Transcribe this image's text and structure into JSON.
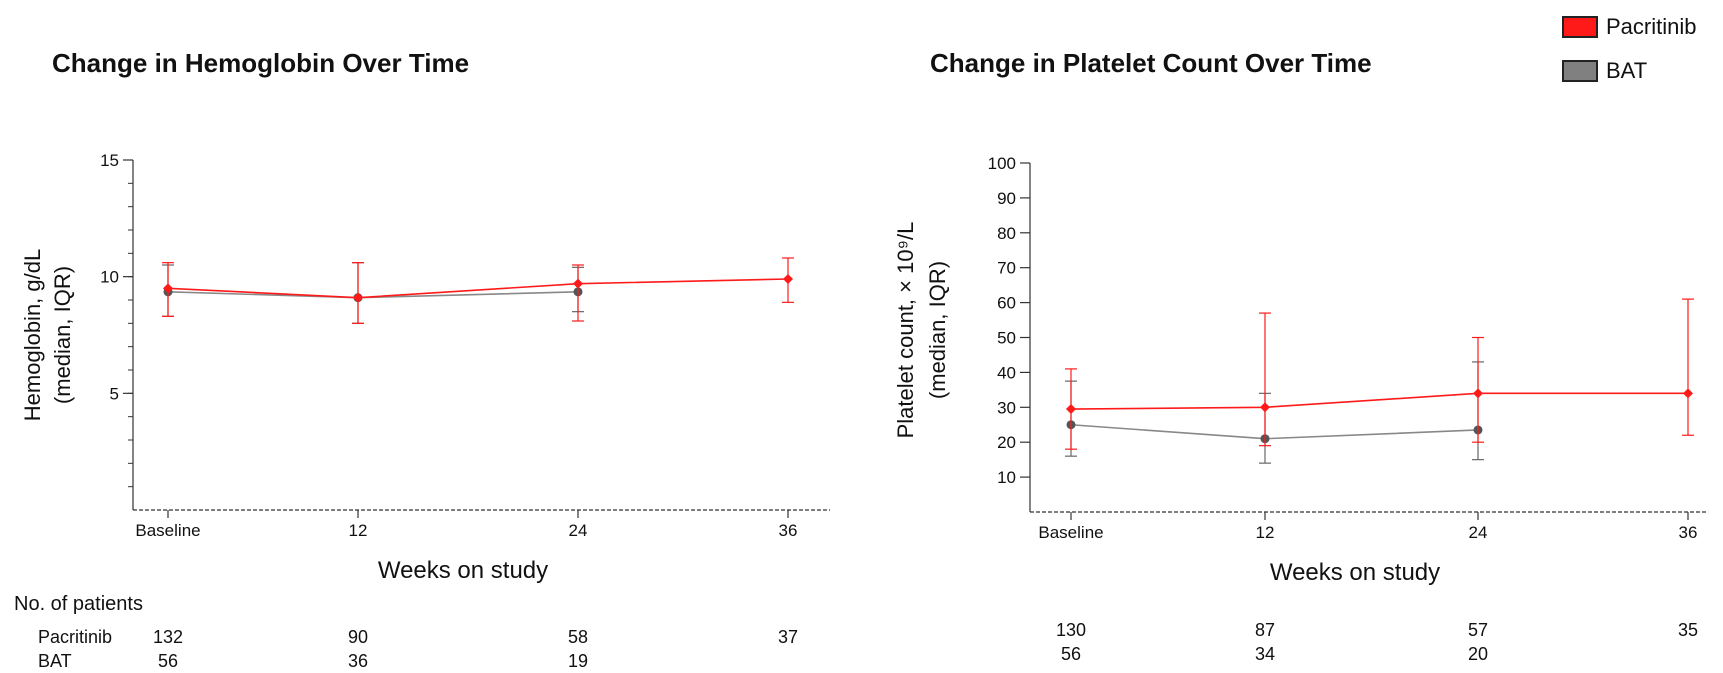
{
  "legend": {
    "items": [
      {
        "label": "Pacritinib",
        "color": "#ff1a1a"
      },
      {
        "label": "BAT",
        "color": "#808080"
      }
    ]
  },
  "patients_label": "No. of patients",
  "chart_data": [
    {
      "type": "line",
      "title": "Change in Hemoglobin Over Time",
      "xlabel": "Weeks on study",
      "ylabel": "Hemoglobin, g/dL (median, IQR)",
      "ylabel_lines": [
        "Hemoglobin, g/dL",
        "(median, IQR)"
      ],
      "categories": [
        "Baseline",
        "12",
        "24",
        "36"
      ],
      "ylim": [
        0,
        15
      ],
      "yticks": [
        5,
        10,
        15
      ],
      "grid": false,
      "series": [
        {
          "name": "Pacritinib",
          "color": "#ff1a1a",
          "values": [
            9.5,
            9.1,
            9.7,
            9.9
          ],
          "iqr_low": [
            8.3,
            8.0,
            8.1,
            8.9
          ],
          "iqr_high": [
            10.6,
            10.6,
            10.5,
            10.8
          ]
        },
        {
          "name": "BAT",
          "color": "#555555",
          "values": [
            9.35,
            9.1,
            9.35,
            null
          ],
          "iqr_low": [
            8.3,
            8.0,
            8.5,
            null
          ],
          "iqr_high": [
            10.5,
            10.6,
            10.4,
            null
          ]
        }
      ],
      "patients": [
        {
          "name": "Pacritinib",
          "counts": [
            "132",
            "90",
            "58",
            "37"
          ]
        },
        {
          "name": "BAT",
          "counts": [
            "56",
            "36",
            "19",
            ""
          ]
        }
      ]
    },
    {
      "type": "line",
      "title": "Change in Platelet Count Over Time",
      "xlabel": "Weeks on study",
      "ylabel": "Platelet count, × 10⁹/L (median, IQR)",
      "ylabel_lines": [
        "Platelet count, × 10⁹/L",
        "(median, IQR)"
      ],
      "categories": [
        "Baseline",
        "12",
        "24",
        "36"
      ],
      "ylim": [
        0,
        100
      ],
      "yticks": [
        10,
        20,
        30,
        40,
        50,
        60,
        70,
        80,
        90,
        100
      ],
      "grid": false,
      "series": [
        {
          "name": "Pacritinib",
          "color": "#ff1a1a",
          "values": [
            29.5,
            30,
            34,
            34
          ],
          "iqr_low": [
            18,
            19,
            20,
            22
          ],
          "iqr_high": [
            41,
            57,
            50,
            61
          ]
        },
        {
          "name": "BAT",
          "color": "#555555",
          "values": [
            25,
            21,
            23.5,
            null
          ],
          "iqr_low": [
            16,
            14,
            15,
            null
          ],
          "iqr_high": [
            37.5,
            34,
            43,
            null
          ]
        }
      ],
      "patients": [
        {
          "name": "Pacritinib",
          "counts": [
            "130",
            "87",
            "57",
            "35"
          ]
        },
        {
          "name": "BAT",
          "counts": [
            "56",
            "34",
            "20",
            ""
          ]
        }
      ]
    }
  ]
}
